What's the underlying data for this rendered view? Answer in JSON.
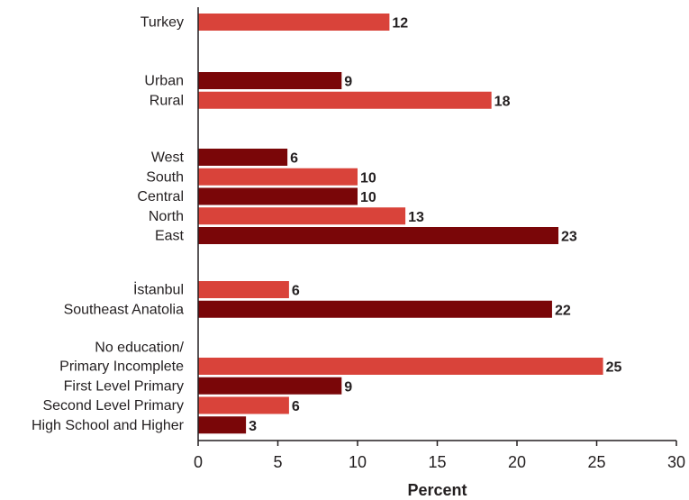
{
  "chart_data": {
    "type": "bar",
    "orientation": "horizontal",
    "xlabel": "Percent",
    "xlim": [
      0,
      30
    ],
    "xticks": [
      "0",
      "5",
      "10",
      "15",
      "20",
      "25",
      "30"
    ],
    "grid": false,
    "legend": "none",
    "colors": {
      "light": "#d9433a",
      "dark": "#7a0608",
      "text": "#231f20",
      "axis": "#231f20"
    },
    "groups": [
      {
        "bars": [
          {
            "label": [
              "Turkey"
            ],
            "value": 12,
            "display": "12",
            "color": "light"
          }
        ]
      },
      {
        "bars": [
          {
            "label": [
              "Urban"
            ],
            "value": 9,
            "display": "9",
            "color": "dark"
          },
          {
            "label": [
              "Rural"
            ],
            "value": 18.4,
            "display": "18",
            "color": "light"
          }
        ]
      },
      {
        "bars": [
          {
            "label": [
              "West"
            ],
            "value": 5.6,
            "display": "6",
            "color": "dark"
          },
          {
            "label": [
              "South"
            ],
            "value": 10,
            "display": "10",
            "color": "light"
          },
          {
            "label": [
              "Central"
            ],
            "value": 10,
            "display": "10",
            "color": "dark"
          },
          {
            "label": [
              "North"
            ],
            "value": 13,
            "display": "13",
            "color": "light"
          },
          {
            "label": [
              "East"
            ],
            "value": 22.6,
            "display": "23",
            "color": "dark"
          }
        ]
      },
      {
        "bars": [
          {
            "label": [
              "İstanbul"
            ],
            "value": 5.7,
            "display": "6",
            "color": "light"
          },
          {
            "label": [
              "Southeast Anatolia"
            ],
            "value": 22.2,
            "display": "22",
            "color": "dark"
          }
        ]
      },
      {
        "bars": [
          {
            "label": [
              "No education/",
              "Primary Incomplete"
            ],
            "value": 25.4,
            "display": "25",
            "color": "light"
          },
          {
            "label": [
              "First Level Primary"
            ],
            "value": 9,
            "display": "9",
            "color": "dark"
          },
          {
            "label": [
              "Second Level Primary"
            ],
            "value": 5.7,
            "display": "6",
            "color": "light"
          },
          {
            "label": [
              "High School and Higher"
            ],
            "value": 3,
            "display": "3",
            "color": "dark"
          }
        ]
      }
    ]
  }
}
